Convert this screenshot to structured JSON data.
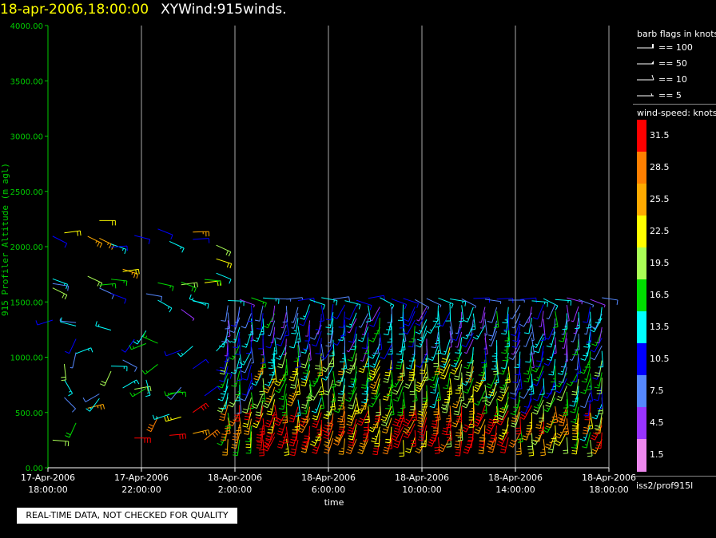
{
  "header": {
    "datetime": "18-apr-2006,18:00:00",
    "title": "XYWind:915winds."
  },
  "chart_data": {
    "type": "scatter",
    "title": "XYWind:915winds.",
    "xlabel": "time",
    "ylabel": "915 Profiler Altitude (m agl)",
    "ylim": [
      0,
      4000
    ],
    "y_ticks": [
      "0.00",
      "500.00",
      "1000.00",
      "1500.00",
      "2000.00",
      "2500.00",
      "3000.00",
      "3500.00",
      "4000.00"
    ],
    "x_ticks": [
      {
        "date": "17-Apr-2006",
        "time": "18:00:00"
      },
      {
        "date": "17-Apr-2006",
        "time": "22:00:00"
      },
      {
        "date": "18-Apr-2006",
        "time": "2:00:00"
      },
      {
        "date": "18-Apr-2006",
        "time": "6:00:00"
      },
      {
        "date": "18-Apr-2006",
        "time": "10:00:00"
      },
      {
        "date": "18-Apr-2006",
        "time": "14:00:00"
      },
      {
        "date": "18-Apr-2006",
        "time": "18:00:00"
      }
    ],
    "xlim_hours": [
      0,
      24
    ],
    "grid": "vertical",
    "legend_position": "right",
    "barb_legend": {
      "title": "barb flags in knots",
      "items": [
        "== 100",
        "== 50",
        "== 10",
        "== 5"
      ]
    },
    "colorbar": {
      "title": "wind-speed: knots",
      "labels": [
        "31.5",
        "28.5",
        "25.5",
        "22.5",
        "19.5",
        "16.5",
        "13.5",
        "10.5",
        "7.5",
        "4.5",
        "1.5"
      ],
      "colors": [
        "#ff0000",
        "#ff7f00",
        "#ffaa00",
        "#ffff00",
        "#aaff55",
        "#00dd00",
        "#00ffff",
        "#0000ff",
        "#5588ff",
        "#9933ff",
        "#ee88ee"
      ]
    },
    "source_label": "iss2/prof915l"
  },
  "footer": {
    "quality_notice": "REAL-TIME DATA, NOT CHECKED FOR QUALITY"
  },
  "colors": {
    "background": "#000000",
    "axis": "#00cc00",
    "grid": "#aaaaaa",
    "text": "#ffffff",
    "datetime": "#ffff00"
  }
}
